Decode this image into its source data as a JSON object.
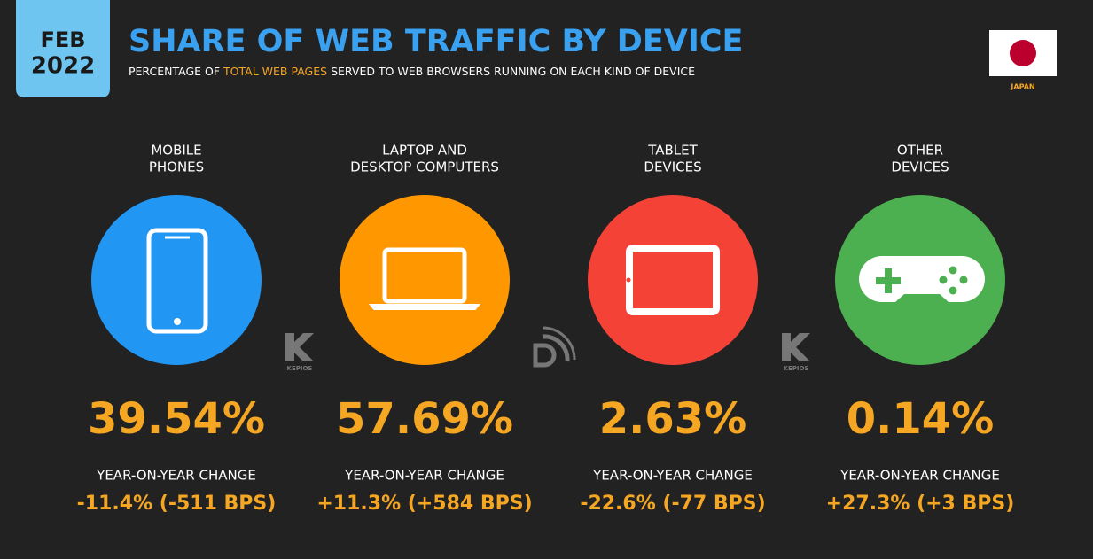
{
  "header": {
    "month": "FEB",
    "year": "2022",
    "title": "SHARE OF WEB TRAFFIC BY DEVICE",
    "subtitle": [
      "PERCENTAGE OF",
      "TOTAL WEB PAGES",
      "SERVED TO WEB BROWSERS RUNNING ON EACH KIND OF DEVICE"
    ],
    "country": "JAPAN"
  },
  "watermark": "KEPIOS",
  "devices": [
    {
      "label": [
        "MOBILE",
        "PHONES"
      ],
      "share": "39.54%",
      "change_label": "YEAR-ON-YEAR CHANGE",
      "change": "-11.4% (-511 BPS)",
      "color": "#2196f3"
    },
    {
      "label": [
        "LAPTOP AND",
        "DESKTOP COMPUTERS"
      ],
      "share": "57.69%",
      "change_label": "YEAR-ON-YEAR CHANGE",
      "change": "+11.3% (+584 BPS)",
      "color": "#ff9800"
    },
    {
      "label": [
        "TABLET",
        "DEVICES"
      ],
      "share": "2.63%",
      "change_label": "YEAR-ON-YEAR CHANGE",
      "change": "-22.6% (-77 BPS)",
      "color": "#f44336"
    },
    {
      "label": [
        "OTHER",
        "DEVICES"
      ],
      "share": "0.14%",
      "change_label": "YEAR-ON-YEAR CHANGE",
      "change": "+27.3% (+3 BPS)",
      "color": "#4caf50"
    }
  ]
}
